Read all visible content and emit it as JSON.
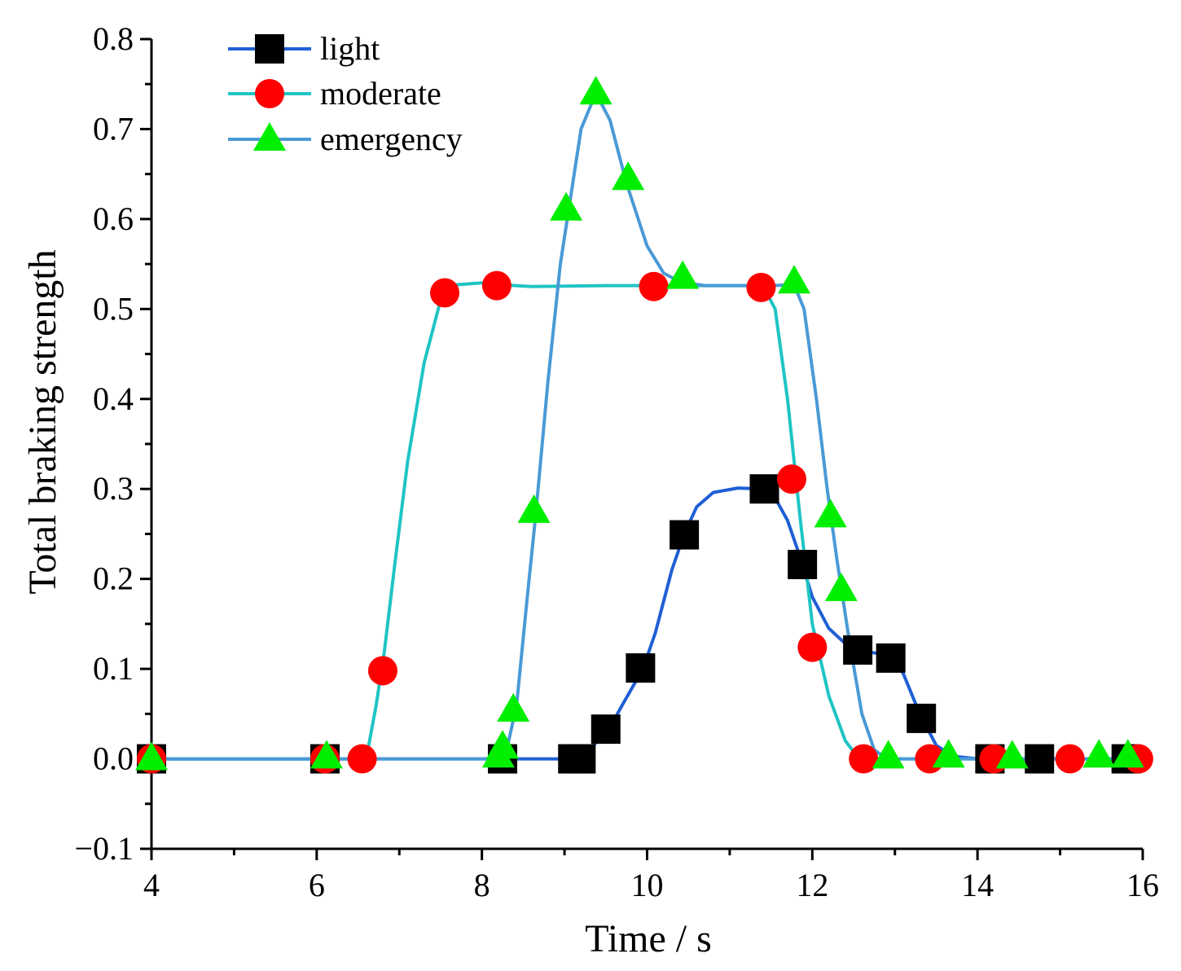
{
  "chart_data": {
    "type": "line",
    "title": "",
    "xlabel": "Time  / s",
    "ylabel": "Total braking strength",
    "xlim": [
      4,
      16
    ],
    "ylim": [
      -0.1,
      0.8
    ],
    "xticks": [
      4,
      6,
      8,
      10,
      12,
      14,
      16
    ],
    "xtick_labels": [
      "4",
      "6",
      "8",
      "10",
      "12",
      "14",
      "16"
    ],
    "yticks": [
      -0.1,
      0.0,
      0.1,
      0.2,
      0.3,
      0.4,
      0.5,
      0.6,
      0.7,
      0.8
    ],
    "ytick_labels": [
      "−0.1",
      "0.0",
      "0.1",
      "0.2",
      "0.3",
      "0.4",
      "0.5",
      "0.6",
      "0.7",
      "0.8"
    ],
    "grid": false,
    "legend_position": "top-left",
    "series": [
      {
        "name": "light",
        "line_color": "#1f5fd6",
        "marker": "square",
        "marker_color": "#000000",
        "curve": [
          [
            4,
            0
          ],
          [
            6,
            0
          ],
          [
            8,
            0
          ],
          [
            9.1,
            0
          ],
          [
            9.2,
            0
          ],
          [
            9.4,
            0.02
          ],
          [
            9.55,
            0.035
          ],
          [
            9.7,
            0.06
          ],
          [
            9.95,
            0.1
          ],
          [
            10.1,
            0.14
          ],
          [
            10.3,
            0.21
          ],
          [
            10.45,
            0.25
          ],
          [
            10.6,
            0.28
          ],
          [
            10.8,
            0.296
          ],
          [
            11.1,
            0.301
          ],
          [
            11.4,
            0.3
          ],
          [
            11.55,
            0.29
          ],
          [
            11.7,
            0.265
          ],
          [
            11.85,
            0.225
          ],
          [
            12.0,
            0.18
          ],
          [
            12.2,
            0.145
          ],
          [
            12.4,
            0.128
          ],
          [
            12.6,
            0.12
          ],
          [
            12.8,
            0.117
          ],
          [
            12.95,
            0.112
          ],
          [
            13.1,
            0.095
          ],
          [
            13.3,
            0.05
          ],
          [
            13.5,
            0.015
          ],
          [
            13.7,
            0.003
          ],
          [
            14,
            0
          ],
          [
            16,
            0
          ]
        ],
        "markers": [
          [
            4,
            0
          ],
          [
            6.1,
            0
          ],
          [
            8.25,
            0
          ],
          [
            9.1,
            0
          ],
          [
            9.2,
            0
          ],
          [
            9.5,
            0.033
          ],
          [
            9.92,
            0.101
          ],
          [
            10.45,
            0.249
          ],
          [
            11.42,
            0.3
          ],
          [
            11.88,
            0.216
          ],
          [
            12.55,
            0.121
          ],
          [
            12.95,
            0.112
          ],
          [
            13.32,
            0.045
          ],
          [
            14.15,
            0
          ],
          [
            14.75,
            0
          ],
          [
            15.8,
            0
          ]
        ]
      },
      {
        "name": "moderate",
        "line_color": "#1fc4c4",
        "marker": "circle",
        "marker_color": "#ff0000",
        "curve": [
          [
            4,
            0
          ],
          [
            6,
            0
          ],
          [
            6.5,
            0
          ],
          [
            6.62,
            0.01
          ],
          [
            6.72,
            0.06
          ],
          [
            6.82,
            0.12
          ],
          [
            6.95,
            0.22
          ],
          [
            7.1,
            0.33
          ],
          [
            7.3,
            0.44
          ],
          [
            7.5,
            0.51
          ],
          [
            7.7,
            0.527
          ],
          [
            8.0,
            0.529
          ],
          [
            8.2,
            0.527
          ],
          [
            8.6,
            0.525
          ],
          [
            9.5,
            0.526
          ],
          [
            10.5,
            0.526
          ],
          [
            11.4,
            0.526
          ],
          [
            11.55,
            0.5
          ],
          [
            11.7,
            0.4
          ],
          [
            11.85,
            0.27
          ],
          [
            12.0,
            0.15
          ],
          [
            12.2,
            0.07
          ],
          [
            12.4,
            0.02
          ],
          [
            12.55,
            0.002
          ],
          [
            12.7,
            0
          ],
          [
            16,
            0
          ]
        ],
        "markers": [
          [
            4,
            0
          ],
          [
            6.1,
            0
          ],
          [
            6.55,
            0
          ],
          [
            6.8,
            0.098
          ],
          [
            7.55,
            0.518
          ],
          [
            8.18,
            0.526
          ],
          [
            10.08,
            0.525
          ],
          [
            11.38,
            0.524
          ],
          [
            11.75,
            0.311
          ],
          [
            12.0,
            0.124
          ],
          [
            12.62,
            0
          ],
          [
            13.42,
            0
          ],
          [
            14.2,
            0
          ],
          [
            15.12,
            0
          ],
          [
            15.95,
            0
          ]
        ]
      },
      {
        "name": "emergency",
        "line_color": "#4a9ad6",
        "marker": "triangle",
        "marker_color": "#00ee00",
        "curve": [
          [
            4,
            0
          ],
          [
            6,
            0
          ],
          [
            8.2,
            0
          ],
          [
            8.3,
            0.01
          ],
          [
            8.42,
            0.06
          ],
          [
            8.55,
            0.18
          ],
          [
            8.65,
            0.27
          ],
          [
            8.8,
            0.42
          ],
          [
            8.95,
            0.55
          ],
          [
            9.05,
            0.61
          ],
          [
            9.2,
            0.7
          ],
          [
            9.38,
            0.74
          ],
          [
            9.55,
            0.71
          ],
          [
            9.75,
            0.64
          ],
          [
            10.0,
            0.57
          ],
          [
            10.2,
            0.54
          ],
          [
            10.4,
            0.53
          ],
          [
            10.7,
            0.526
          ],
          [
            11.5,
            0.526
          ],
          [
            11.78,
            0.527
          ],
          [
            11.9,
            0.5
          ],
          [
            12.05,
            0.4
          ],
          [
            12.18,
            0.3
          ],
          [
            12.3,
            0.22
          ],
          [
            12.45,
            0.13
          ],
          [
            12.6,
            0.05
          ],
          [
            12.75,
            0.01
          ],
          [
            12.9,
            0
          ],
          [
            16,
            0
          ]
        ],
        "markers": [
          [
            4,
            0
          ],
          [
            6.12,
            0.002
          ],
          [
            8.2,
            0.003
          ],
          [
            8.25,
            0.013
          ],
          [
            8.38,
            0.054
          ],
          [
            8.63,
            0.275
          ],
          [
            9.02,
            0.611
          ],
          [
            9.38,
            0.74
          ],
          [
            9.77,
            0.645
          ],
          [
            10.43,
            0.535
          ],
          [
            11.78,
            0.53
          ],
          [
            12.22,
            0.27
          ],
          [
            12.35,
            0.188
          ],
          [
            12.92,
            0.002
          ],
          [
            13.65,
            0.003
          ],
          [
            14.42,
            0.002
          ],
          [
            15.47,
            0.003
          ],
          [
            15.82,
            0.003
          ]
        ]
      }
    ]
  }
}
